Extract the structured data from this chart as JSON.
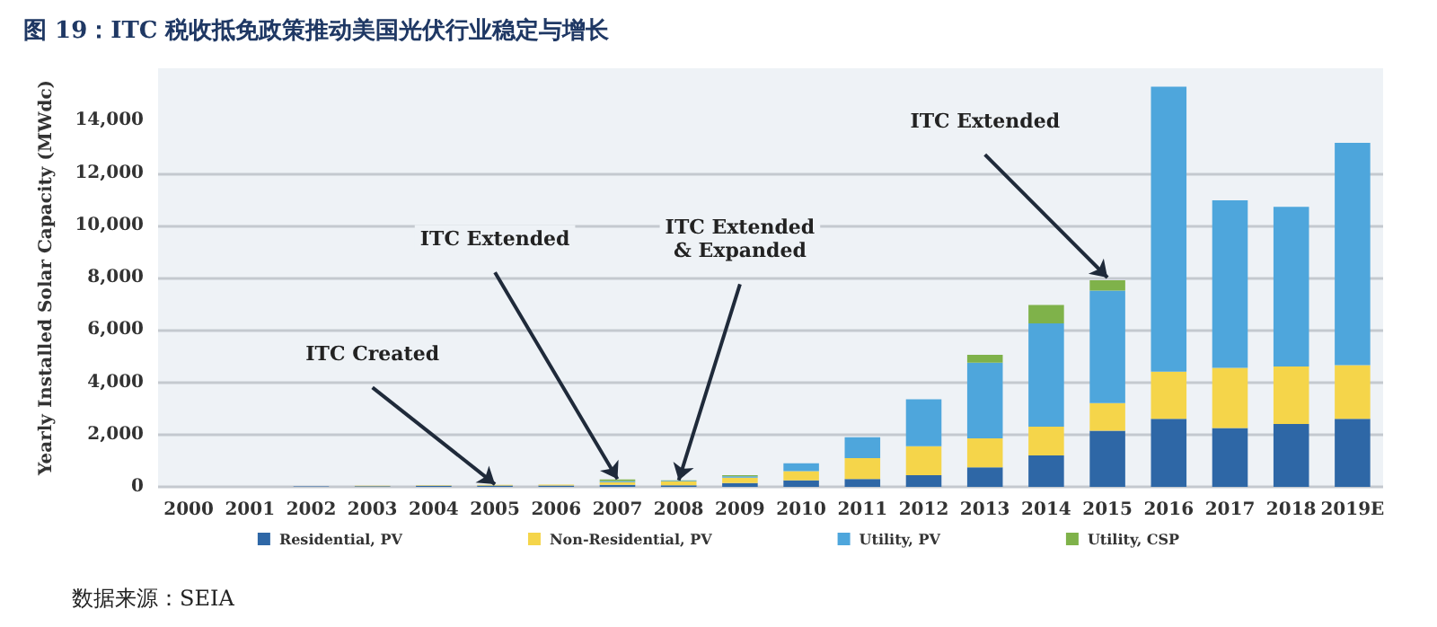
{
  "chart_data": {
    "type": "bar",
    "title": "图 19：ITC 税收抵免政策推动美国光伏行业稳定与增长",
    "ylabel": "Yearly Installed Solar Capacity (MWdc)",
    "categories": [
      "2000",
      "2001",
      "2002",
      "2003",
      "2004",
      "2005",
      "2006",
      "2007",
      "2008",
      "2009",
      "2010",
      "2011",
      "2012",
      "2013",
      "2014",
      "2015",
      "2016",
      "2017",
      "2018",
      "2019E"
    ],
    "stacked": true,
    "series": [
      {
        "name": "Residential, PV",
        "color": "#2e67a6",
        "values": [
          null,
          null,
          20,
          30,
          40,
          50,
          50,
          80,
          60,
          150,
          250,
          300,
          450,
          750,
          1200,
          2150,
          2600,
          2250,
          2400,
          2600
        ]
      },
      {
        "name": "Non-Residential, PV",
        "color": "#f5d54a",
        "values": [
          0,
          0,
          0,
          10,
          20,
          30,
          40,
          100,
          150,
          200,
          350,
          800,
          1100,
          1100,
          1100,
          1050,
          1800,
          2300,
          2200,
          2050
        ]
      },
      {
        "name": "Utility, PV",
        "color": "#4ea6dc",
        "values": [
          0,
          0,
          0,
          0,
          0,
          null,
          null,
          40,
          20,
          50,
          300,
          800,
          1800,
          2900,
          3950,
          4300,
          10900,
          6400,
          6100,
          8500
        ]
      },
      {
        "name": "Utility, CSP",
        "color": "#7fb24a",
        "values": [
          0,
          0,
          0,
          0,
          0,
          0,
          0,
          60,
          20,
          50,
          0,
          0,
          0,
          300,
          700,
          400,
          0,
          0,
          0,
          0
        ]
      }
    ],
    "ylim": [
      0,
      16000
    ],
    "yticks": [
      {
        "value": 0,
        "label": "0"
      },
      {
        "value": 2000,
        "label": "2,000"
      },
      {
        "value": 4000,
        "label": "4,000"
      },
      {
        "value": 6000,
        "label": "6,000"
      },
      {
        "value": 8000,
        "label": "8,000"
      },
      {
        "value": 10000,
        "label": "10,000"
      },
      {
        "value": 12000,
        "label": "12,000"
      },
      {
        "value": 14000,
        "label": "14,000"
      }
    ],
    "grid": "y",
    "legend": "bottom",
    "annotations": [
      {
        "text": "ITC Created",
        "x": "2005",
        "y": 100
      },
      {
        "text": "ITC Extended",
        "x": "2007",
        "y": 300
      },
      {
        "text": "ITC Extended\n& Expanded",
        "x": "2008",
        "y": 250
      },
      {
        "text": "ITC Extended",
        "x": "2015",
        "y": 8000
      },
      "数据来源：SEIA"
    ]
  }
}
